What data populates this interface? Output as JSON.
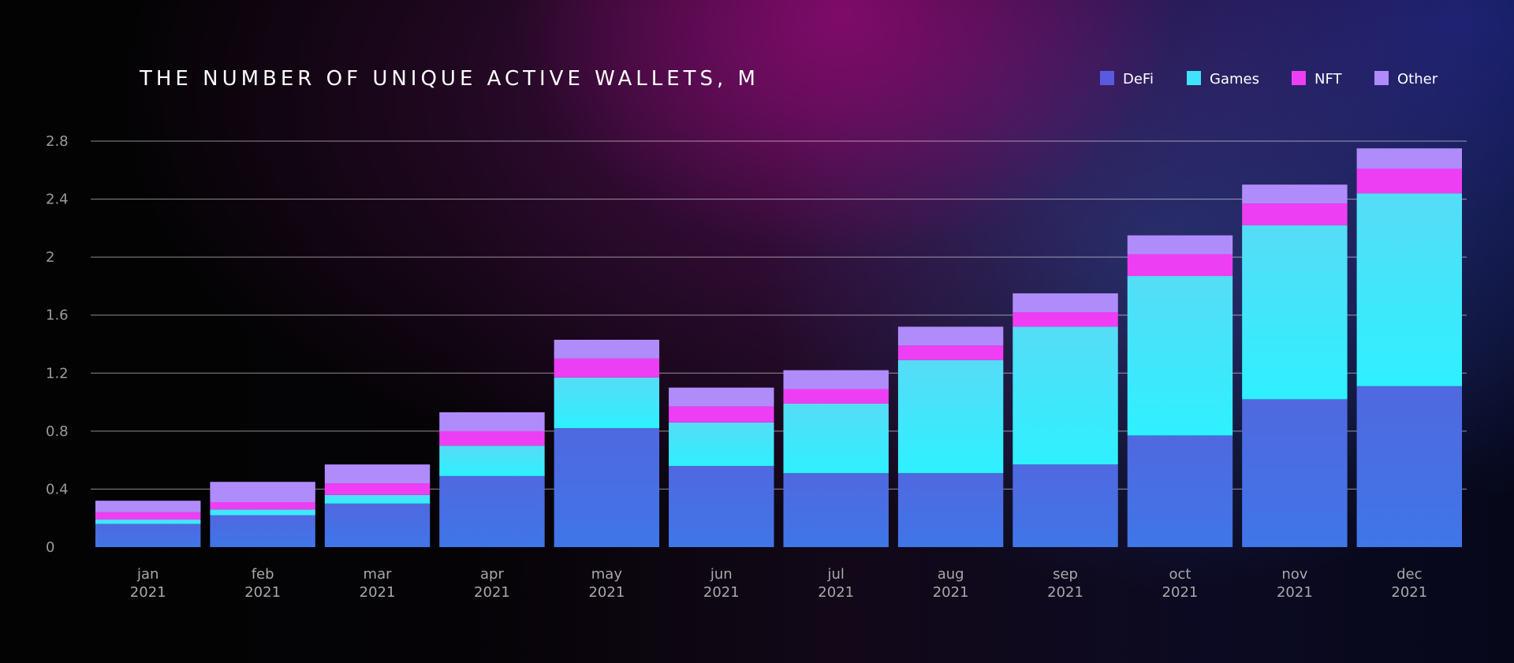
{
  "chart_data": {
    "type": "bar",
    "stacked": true,
    "title": "THE NUMBER OF UNIQUE ACTIVE WALLETS, M",
    "categories": [
      [
        "jan",
        "2021"
      ],
      [
        "feb",
        "2021"
      ],
      [
        "mar",
        "2021"
      ],
      [
        "apr",
        "2021"
      ],
      [
        "may",
        "2021"
      ],
      [
        "jun",
        "2021"
      ],
      [
        "jul",
        "2021"
      ],
      [
        "aug",
        "2021"
      ],
      [
        "sep",
        "2021"
      ],
      [
        "oct",
        "2021"
      ],
      [
        "nov",
        "2021"
      ],
      [
        "dec",
        "2021"
      ]
    ],
    "yticks": [
      "0",
      "0.4",
      "0.8",
      "1.2",
      "1.6",
      "2",
      "2.4",
      "2.8"
    ],
    "ylim": [
      0,
      2.8
    ],
    "grid": true,
    "legend_position": "top-right",
    "series": [
      {
        "name": "DeFi",
        "color": "#5a5ae0",
        "bar_color_top": "#5068e0",
        "bar_color_bottom": "#3f76e8",
        "values": [
          0.16,
          0.22,
          0.3,
          0.49,
          0.82,
          0.56,
          0.51,
          0.51,
          0.57,
          0.77,
          1.02,
          1.11
        ]
      },
      {
        "name": "Games",
        "color": "#3fe4fa",
        "bar_color_top": "#56dcf6",
        "bar_color_bottom": "#2ef0ff",
        "values": [
          0.03,
          0.04,
          0.06,
          0.21,
          0.35,
          0.3,
          0.48,
          0.78,
          0.95,
          1.1,
          1.2,
          1.33
        ]
      },
      {
        "name": "NFT",
        "color": "#ee3ef4",
        "bar_color_top": "#ee3ef4",
        "bar_color_bottom": "#ee3ef4",
        "values": [
          0.05,
          0.05,
          0.08,
          0.1,
          0.13,
          0.11,
          0.1,
          0.1,
          0.1,
          0.15,
          0.15,
          0.17
        ]
      },
      {
        "name": "Other",
        "color": "#b08cfa",
        "bar_color_top": "#b08cfa",
        "bar_color_bottom": "#b08cfa",
        "values": [
          0.08,
          0.14,
          0.13,
          0.13,
          0.13,
          0.13,
          0.13,
          0.13,
          0.13,
          0.13,
          0.13,
          0.14
        ]
      }
    ]
  }
}
